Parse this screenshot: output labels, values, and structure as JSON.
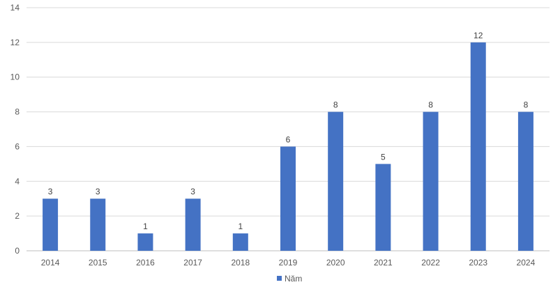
{
  "chart_data": {
    "type": "bar",
    "categories": [
      "2014",
      "2015",
      "2016",
      "2017",
      "2018",
      "2019",
      "2020",
      "2021",
      "2022",
      "2023",
      "2024"
    ],
    "series": [
      {
        "name": "Năm",
        "values": [
          3,
          3,
          1,
          3,
          1,
          6,
          8,
          5,
          8,
          12,
          8
        ]
      }
    ],
    "ylim": [
      0,
      14
    ],
    "yticks": [
      0,
      2,
      4,
      6,
      8,
      10,
      12,
      14
    ],
    "grid": true,
    "legend_position": "bottom",
    "data_labels": true,
    "title": "",
    "xlabel": "",
    "ylabel": ""
  },
  "colors": {
    "series": "#4472c4"
  }
}
